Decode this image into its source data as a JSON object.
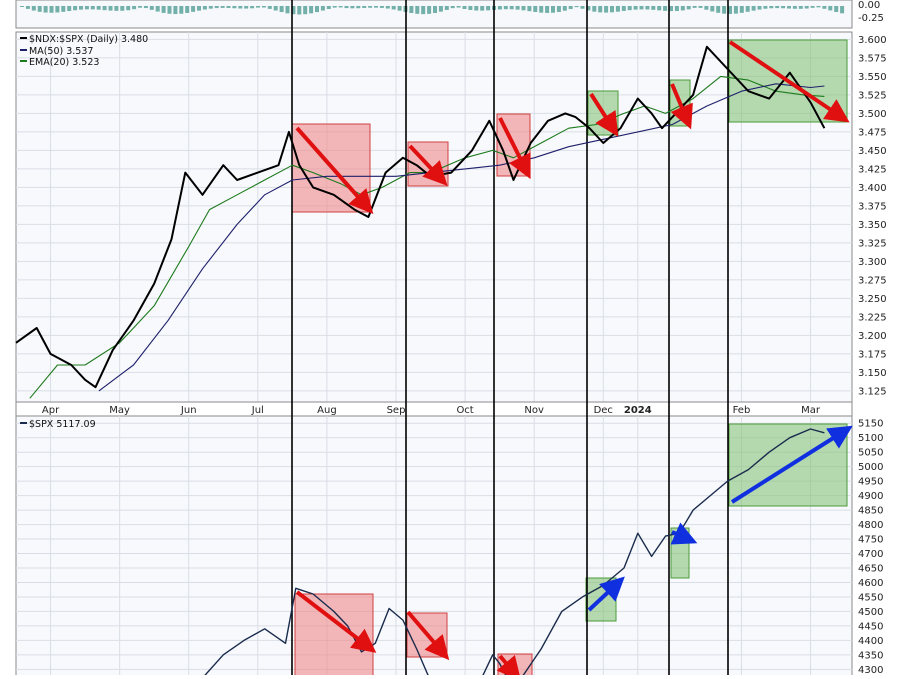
{
  "chart_data": [
    {
      "type": "line",
      "panel": "upper",
      "legend": [
        {
          "label": "$NDX:$SPX (Daily) 3.480",
          "color": "#000000"
        },
        {
          "label": "MA(50) 3.537",
          "color": "#1f1f6b"
        },
        {
          "label": "EMA(20) 3.523",
          "color": "#1d7a1d"
        }
      ],
      "indicator_ticks": [
        "0.00",
        "-0.25"
      ],
      "ylim": [
        3.11,
        3.61
      ],
      "yticks": [
        "3.600",
        "3.575",
        "3.550",
        "3.525",
        "3.500",
        "3.475",
        "3.450",
        "3.425",
        "3.400",
        "3.375",
        "3.350",
        "3.325",
        "3.300",
        "3.275",
        "3.250",
        "3.225",
        "3.200",
        "3.175",
        "3.150",
        "3.125"
      ],
      "xtick_labels": [
        "Apr",
        "May",
        "Jun",
        "Jul",
        "Aug",
        "Sep",
        "Oct",
        "Nov",
        "Dec",
        "2024",
        "Feb",
        "Mar"
      ],
      "xtick_months": [
        0.5,
        1.5,
        2.5,
        3.5,
        4.5,
        5.5,
        6.5,
        7.5,
        8.5,
        9.0,
        10.5,
        11.5
      ],
      "series": [
        {
          "key": "ratio",
          "color": "#000000",
          "points": [
            [
              0,
              3.19
            ],
            [
              0.3,
              3.21
            ],
            [
              0.5,
              3.175
            ],
            [
              0.8,
              3.16
            ],
            [
              1.0,
              3.14
            ],
            [
              1.15,
              3.13
            ],
            [
              1.4,
              3.18
            ],
            [
              1.7,
              3.22
            ],
            [
              2.0,
              3.27
            ],
            [
              2.25,
              3.33
            ],
            [
              2.45,
              3.42
            ],
            [
              2.7,
              3.39
            ],
            [
              3.0,
              3.43
            ],
            [
              3.2,
              3.41
            ],
            [
              3.5,
              3.42
            ],
            [
              3.8,
              3.43
            ],
            [
              3.95,
              3.475
            ],
            [
              4.1,
              3.43
            ],
            [
              4.3,
              3.4
            ],
            [
              4.6,
              3.39
            ],
            [
              4.9,
              3.37
            ],
            [
              5.1,
              3.36
            ],
            [
              5.35,
              3.42
            ],
            [
              5.6,
              3.44
            ],
            [
              5.8,
              3.43
            ],
            [
              6.0,
              3.415
            ],
            [
              6.3,
              3.42
            ],
            [
              6.6,
              3.45
            ],
            [
              6.85,
              3.49
            ],
            [
              7.05,
              3.45
            ],
            [
              7.2,
              3.41
            ],
            [
              7.45,
              3.46
            ],
            [
              7.7,
              3.49
            ],
            [
              7.95,
              3.5
            ],
            [
              8.1,
              3.495
            ],
            [
              8.3,
              3.48
            ],
            [
              8.5,
              3.46
            ],
            [
              8.75,
              3.48
            ],
            [
              9.0,
              3.52
            ],
            [
              9.2,
              3.5
            ],
            [
              9.35,
              3.48
            ],
            [
              9.55,
              3.5
            ],
            [
              9.8,
              3.525
            ],
            [
              10.0,
              3.59
            ],
            [
              10.3,
              3.56
            ],
            [
              10.6,
              3.53
            ],
            [
              10.9,
              3.52
            ],
            [
              11.2,
              3.555
            ],
            [
              11.5,
              3.515
            ],
            [
              11.7,
              3.48
            ]
          ]
        },
        {
          "key": "ma50",
          "color": "#1f1f6b",
          "points": [
            [
              1.2,
              3.125
            ],
            [
              1.7,
              3.16
            ],
            [
              2.2,
              3.22
            ],
            [
              2.7,
              3.29
            ],
            [
              3.2,
              3.35
            ],
            [
              3.6,
              3.39
            ],
            [
              4.0,
              3.41
            ],
            [
              4.5,
              3.415
            ],
            [
              5.0,
              3.415
            ],
            [
              5.5,
              3.415
            ],
            [
              6.0,
              3.42
            ],
            [
              6.5,
              3.425
            ],
            [
              7.0,
              3.43
            ],
            [
              7.5,
              3.44
            ],
            [
              8.0,
              3.455
            ],
            [
              8.5,
              3.465
            ],
            [
              9.0,
              3.475
            ],
            [
              9.5,
              3.485
            ],
            [
              10.0,
              3.51
            ],
            [
              10.5,
              3.53
            ],
            [
              11.0,
              3.54
            ],
            [
              11.5,
              3.535
            ],
            [
              11.7,
              3.537
            ]
          ]
        },
        {
          "key": "ema20",
          "color": "#1d7a1d",
          "points": [
            [
              0.2,
              3.115
            ],
            [
              0.6,
              3.16
            ],
            [
              1.0,
              3.16
            ],
            [
              1.5,
              3.19
            ],
            [
              2.0,
              3.24
            ],
            [
              2.5,
              3.32
            ],
            [
              2.8,
              3.37
            ],
            [
              3.2,
              3.39
            ],
            [
              3.6,
              3.41
            ],
            [
              4.0,
              3.43
            ],
            [
              4.3,
              3.42
            ],
            [
              4.7,
              3.405
            ],
            [
              5.0,
              3.39
            ],
            [
              5.3,
              3.4
            ],
            [
              5.7,
              3.42
            ],
            [
              6.0,
              3.42
            ],
            [
              6.5,
              3.44
            ],
            [
              6.9,
              3.45
            ],
            [
              7.2,
              3.44
            ],
            [
              7.6,
              3.46
            ],
            [
              8.0,
              3.48
            ],
            [
              8.4,
              3.485
            ],
            [
              8.8,
              3.5
            ],
            [
              9.1,
              3.51
            ],
            [
              9.4,
              3.5
            ],
            [
              9.8,
              3.52
            ],
            [
              10.2,
              3.55
            ],
            [
              10.6,
              3.545
            ],
            [
              11.0,
              3.53
            ],
            [
              11.4,
              3.525
            ],
            [
              11.7,
              3.523
            ]
          ]
        }
      ]
    },
    {
      "type": "line",
      "panel": "lower",
      "legend": [
        {
          "label": "$SPX 5117.09",
          "color": "#1a2b4c"
        }
      ],
      "ylim": [
        4270,
        5175
      ],
      "yticks": [
        "5150",
        "5100",
        "5050",
        "5000",
        "4950",
        "4900",
        "4850",
        "4800",
        "4750",
        "4700",
        "4650",
        "4600",
        "4550",
        "4500",
        "4450",
        "4400",
        "4350",
        "4300"
      ],
      "series": [
        {
          "key": "spx",
          "color": "#1a2b4c",
          "points": [
            [
              2.7,
              4270
            ],
            [
              3.0,
              4350
            ],
            [
              3.3,
              4400
            ],
            [
              3.6,
              4440
            ],
            [
              3.9,
              4390
            ],
            [
              4.05,
              4580
            ],
            [
              4.3,
              4560
            ],
            [
              4.6,
              4500
            ],
            [
              4.8,
              4450
            ],
            [
              5.0,
              4360
            ],
            [
              5.2,
              4390
            ],
            [
              5.4,
              4510
            ],
            [
              5.6,
              4470
            ],
            [
              5.8,
              4370
            ],
            [
              6.0,
              4260
            ],
            [
              6.3,
              4240
            ],
            [
              6.7,
              4250
            ],
            [
              6.9,
              4350
            ],
            [
              7.0,
              4320
            ],
            [
              7.2,
              4230
            ],
            [
              7.6,
              4370
            ],
            [
              7.9,
              4500
            ],
            [
              8.2,
              4550
            ],
            [
              8.5,
              4590
            ],
            [
              8.8,
              4650
            ],
            [
              9.0,
              4770
            ],
            [
              9.2,
              4690
            ],
            [
              9.4,
              4760
            ],
            [
              9.6,
              4770
            ],
            [
              9.8,
              4850
            ],
            [
              10.0,
              4890
            ],
            [
              10.3,
              4950
            ],
            [
              10.6,
              4990
            ],
            [
              10.9,
              5050
            ],
            [
              11.2,
              5100
            ],
            [
              11.5,
              5130
            ],
            [
              11.7,
              5117
            ]
          ]
        }
      ]
    }
  ]
}
